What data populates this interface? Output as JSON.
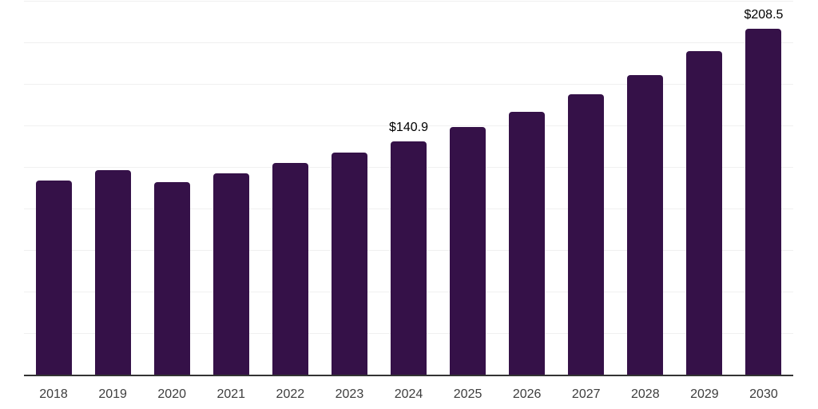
{
  "chart_data": {
    "type": "bar",
    "title": "",
    "xlabel": "",
    "ylabel": "",
    "categories": [
      "2018",
      "2019",
      "2020",
      "2021",
      "2022",
      "2023",
      "2024",
      "2025",
      "2026",
      "2027",
      "2028",
      "2029",
      "2030"
    ],
    "values": [
      117.3,
      123.4,
      116.5,
      121.5,
      127.9,
      134.1,
      140.9,
      149.5,
      158.7,
      169.1,
      180.8,
      195.0,
      208.5
    ],
    "data_labels": {
      "2024": "$140.9",
      "2030": "$208.5"
    },
    "ylim": [
      0,
      225
    ],
    "grid_step": 25,
    "grid": "horizontal-only",
    "legend": "none",
    "colors": {
      "bar": "#351148",
      "axis_line": "#333333",
      "gridline": "#f0f0f0",
      "tick_label": "#3d3d3d",
      "data_label": "#000000",
      "background": "#ffffff"
    }
  }
}
